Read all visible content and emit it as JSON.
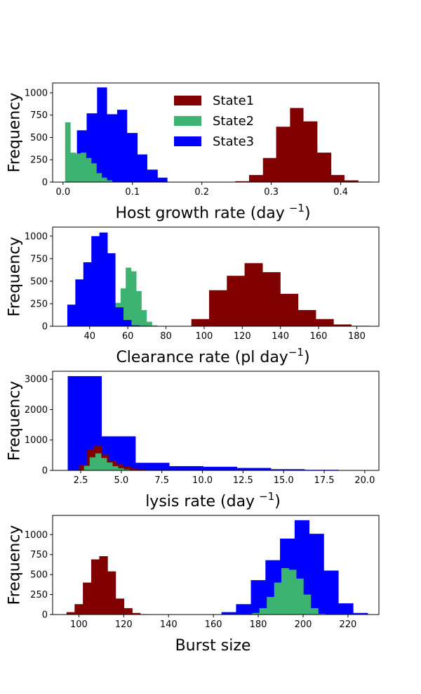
{
  "colors": {
    "State1": "#800000",
    "State2": "#3cb371",
    "State3": "#0000ff"
  },
  "legend": {
    "placement": "top-center (first panel)",
    "entries": [
      "State1",
      "State2",
      "State3"
    ]
  },
  "chart_data": [
    {
      "type": "histogram",
      "xlabel": "Host growth rate (day",
      "xlabel_sup": "−1",
      "xlabel_end": ")",
      "ylabel": "Frequency",
      "xlim": [
        -0.015,
        0.455
      ],
      "ylim": [
        0,
        1110
      ],
      "xticks": [
        0.0,
        0.1,
        0.2,
        0.3,
        0.4
      ],
      "xtick_labels": [
        "0.0",
        "0.1",
        "0.2",
        "0.3",
        "0.4"
      ],
      "yticks": [
        0,
        250,
        500,
        750,
        1000
      ],
      "ytick_labels": [
        "0",
        "250",
        "500",
        "750",
        "1000"
      ],
      "series": [
        {
          "name": "State1",
          "edges": [
            0.248,
            0.268,
            0.288,
            0.307,
            0.327,
            0.346,
            0.366,
            0.386,
            0.405,
            0.425,
            0.444
          ],
          "counts": [
            10,
            80,
            270,
            620,
            830,
            680,
            330,
            80,
            20,
            5
          ]
        },
        {
          "name": "State3",
          "edges": [
            0.005,
            0.02,
            0.034,
            0.049,
            0.063,
            0.078,
            0.092,
            0.107,
            0.121,
            0.136,
            0.15
          ],
          "counts": [
            300,
            580,
            770,
            1060,
            760,
            810,
            550,
            310,
            140,
            50
          ]
        },
        {
          "name": "State2",
          "edges": [
            0.003,
            0.0105,
            0.018,
            0.0255,
            0.033,
            0.0405,
            0.048,
            0.0555,
            0.063,
            0.0705,
            0.078
          ],
          "counts": [
            670,
            330,
            320,
            330,
            270,
            210,
            100,
            50,
            20,
            5
          ]
        }
      ]
    },
    {
      "type": "histogram",
      "xlabel": "Clearance rate (pl day",
      "xlabel_sup": "−1",
      "xlabel_end": ")",
      "ylabel": "Frequency",
      "xlim": [
        20.6,
        191.6
      ],
      "ylim": [
        0,
        1100
      ],
      "xticks": [
        40,
        60,
        80,
        100,
        120,
        140,
        160,
        180
      ],
      "xtick_labels": [
        "40",
        "60",
        "80",
        "100",
        "120",
        "140",
        "160",
        "180"
      ],
      "yticks": [
        0,
        250,
        500,
        750,
        1000
      ],
      "ytick_labels": [
        "0",
        "250",
        "500",
        "750",
        "1000"
      ],
      "series": [
        {
          "name": "State1",
          "edges": [
            93.3,
            102.6,
            111.9,
            121.2,
            130.6,
            139.9,
            149.2,
            158.5,
            167.8,
            177.1,
            186.4
          ],
          "counts": [
            80,
            400,
            560,
            700,
            600,
            360,
            180,
            80,
            20,
            5
          ]
        },
        {
          "name": "State2",
          "edges": [
            48.0,
            50.7,
            53.5,
            56.2,
            58.9,
            61.7,
            64.4,
            67.1,
            69.8,
            72.6,
            75.3
          ],
          "counts": [
            20,
            80,
            260,
            420,
            650,
            610,
            390,
            180,
            50,
            10
          ]
        },
        {
          "name": "State3",
          "edges": [
            28.3,
            32.5,
            36.7,
            40.9,
            45.1,
            49.3,
            53.4,
            57.6,
            61.8,
            66.0,
            70.2
          ],
          "counts": [
            240,
            520,
            710,
            1000,
            1040,
            810,
            210,
            70,
            10,
            5
          ]
        }
      ]
    },
    {
      "type": "histogram",
      "xlabel": "lysis rate (day",
      "xlabel_sup": "−1",
      "xlabel_end": ")",
      "ylabel": "Frequency",
      "xlim": [
        0.77,
        20.87
      ],
      "ylim": [
        0,
        3260
      ],
      "xticks": [
        2.5,
        5.0,
        7.5,
        10.0,
        12.5,
        15.0,
        17.5,
        20.0
      ],
      "xtick_labels": [
        "2.5",
        "5.0",
        "7.5",
        "10.0",
        "12.5",
        "15.0",
        "17.5",
        "20.0"
      ],
      "yticks": [
        0,
        1000,
        2000,
        3000
      ],
      "ytick_labels": [
        "0",
        "1000",
        "2000",
        "3000"
      ],
      "series": [
        {
          "name": "State3",
          "edges": [
            1.7,
            3.78,
            5.87,
            7.95,
            10.04,
            12.12,
            14.21,
            16.29,
            18.38,
            20.46
          ],
          "counts": [
            3100,
            1120,
            250,
            140,
            120,
            80,
            40,
            20,
            5
          ]
        },
        {
          "name": "State1",
          "edges": [
            2.4,
            2.9,
            3.3,
            3.8,
            4.2,
            4.7,
            5.1,
            5.6,
            6.0,
            6.5,
            6.9
          ],
          "counts": [
            180,
            680,
            800,
            520,
            320,
            200,
            120,
            60,
            25,
            10
          ]
        },
        {
          "name": "State2",
          "edges": [
            2.7,
            3.05,
            3.4,
            3.75,
            4.1,
            4.45,
            4.8,
            5.15,
            5.5,
            5.85,
            6.2
          ],
          "counts": [
            150,
            430,
            560,
            410,
            260,
            140,
            70,
            30,
            10,
            5
          ]
        }
      ]
    },
    {
      "type": "histogram",
      "xlabel": "Burst size",
      "xlabel_sup": "",
      "xlabel_end": "",
      "ylabel": "Frequency",
      "xlim": [
        88.3,
        233.8
      ],
      "ylim": [
        0,
        1240
      ],
      "xticks": [
        100,
        120,
        140,
        160,
        180,
        200,
        220
      ],
      "xtick_labels": [
        "100",
        "120",
        "140",
        "160",
        "180",
        "200",
        "220"
      ],
      "yticks": [
        0,
        250,
        500,
        750,
        1000
      ],
      "ytick_labels": [
        "0",
        "250",
        "500",
        "750",
        "1000"
      ],
      "series": [
        {
          "name": "State1",
          "edges": [
            94.5,
            98.1,
            101.8,
            105.5,
            109.1,
            112.8,
            116.4,
            120.1,
            123.8,
            127.4,
            131.1
          ],
          "counts": [
            30,
            130,
            400,
            690,
            730,
            540,
            200,
            80,
            20,
            5
          ]
        },
        {
          "name": "State3",
          "edges": [
            163.6,
            170.1,
            176.7,
            183.2,
            189.7,
            196.2,
            202.7,
            209.2,
            215.7,
            222.3,
            228.8
          ],
          "counts": [
            30,
            130,
            430,
            680,
            950,
            1180,
            1010,
            550,
            140,
            20
          ]
        },
        {
          "name": "State2",
          "edges": [
            177.3,
            180.5,
            183.8,
            187.1,
            190.3,
            193.6,
            196.9,
            200.1,
            203.4,
            206.7,
            209.9
          ],
          "counts": [
            20,
            80,
            220,
            400,
            580,
            560,
            450,
            250,
            80,
            10
          ]
        }
      ]
    }
  ]
}
